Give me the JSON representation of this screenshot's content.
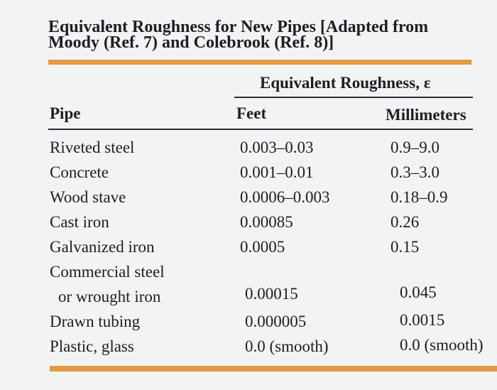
{
  "title": [
    "Equivalent Roughness for New Pipes [Adapted from",
    "Moody (Ref. 7) and Colebrook (Ref. 8)]"
  ],
  "table": {
    "group_header": "Equivalent Roughness, ε",
    "columns": [
      "Pipe",
      "Feet",
      "Millimeters"
    ],
    "rows": [
      {
        "pipe": [
          "Riveted steel"
        ],
        "feet": "0.003–0.03",
        "mm": "0.9–9.0"
      },
      {
        "pipe": [
          "Concrete"
        ],
        "feet": "0.001–0.01",
        "mm": "0.3–3.0"
      },
      {
        "pipe": [
          "Wood stave"
        ],
        "feet": "0.0006–0.003",
        "mm": "0.18–0.9"
      },
      {
        "pipe": [
          "Cast iron"
        ],
        "feet": "0.00085",
        "mm": "0.26"
      },
      {
        "pipe": [
          "Galvanized iron"
        ],
        "feet": "0.0005",
        "mm": "0.15"
      },
      {
        "pipe": [
          "Commercial steel",
          "or wrought iron"
        ],
        "feet": "0.00015",
        "mm": "0.045"
      },
      {
        "pipe": [
          "Drawn tubing"
        ],
        "feet": "0.000005",
        "mm": "0.0015"
      },
      {
        "pipe": [
          "Plastic, glass"
        ],
        "feet": "0.0 (smooth)",
        "mm": "0.0 (smooth)"
      }
    ]
  }
}
